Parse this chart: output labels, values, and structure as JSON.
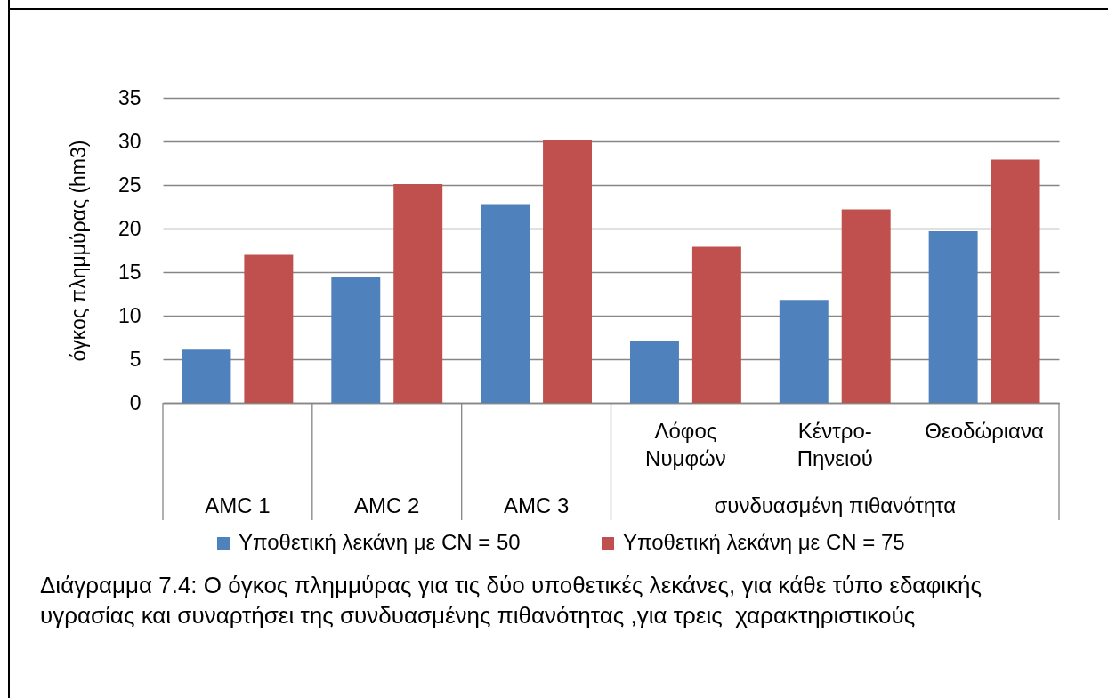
{
  "chart_data": {
    "type": "bar",
    "ylabel": "όγκος πλημμύρας (hm3)",
    "categories": [
      "AMC 1",
      "AMC 2",
      "AMC 3",
      "Λόφος Νυμφών",
      "Κέντρο-Πηνειού",
      "Θεοδώριανα"
    ],
    "series": [
      {
        "name": "Υποθετική λεκάνη με CN = 50",
        "color": "#4f81bd",
        "values": [
          6.1,
          14.5,
          22.8,
          7.1,
          11.8,
          19.7
        ]
      },
      {
        "name": "Υποθετική λεκάνη με CN = 75",
        "color": "#c0504d",
        "values": [
          17,
          25.1,
          30.2,
          17.9,
          22.2,
          27.9
        ]
      }
    ],
    "ylim": [
      0,
      35
    ],
    "yticks": [
      0,
      5,
      10,
      15,
      20,
      25,
      30,
      35
    ],
    "grid": "y",
    "legend": "bottom",
    "annotations": [
      "συνδυασμένη πιθανότητα",
      "Διάγραμμα 7.4: Ο όγκος πλημμύρας για τις δύο υποθετικές λεκάνες, για κάθε τύπο εδαφικής υγρασίας και συναρτήσει της συνδυασμένης πιθανότητας ,για τρεις  χαρακτηριστικούς"
    ]
  }
}
